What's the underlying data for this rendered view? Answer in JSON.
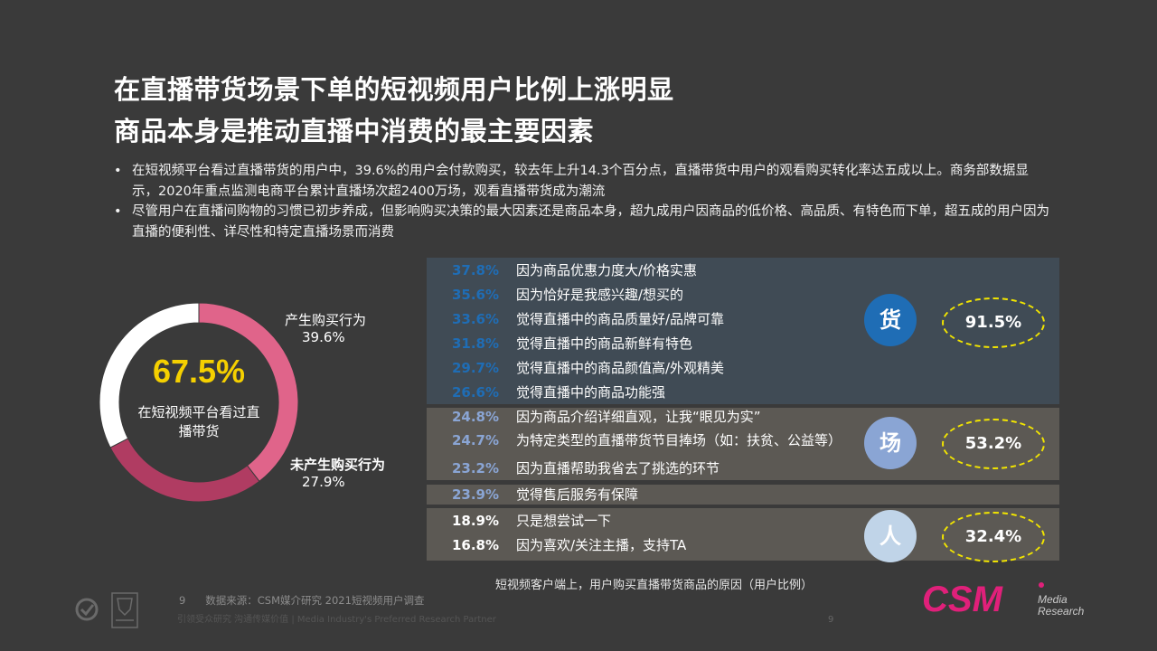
{
  "title": {
    "line1": "在直播带货场景下单的短视频用户比例上涨明显",
    "line2": "商品本身是推动直播中消费的最主要因素"
  },
  "bullets": [
    "在短视频平台看过直播带货的用户中，39.6%的用户会付款购买，较去年上升14.3个百分点，直播带货中用户的观看购买转化率达五成以上。商务部数据显示，2020年重点监测电商平台累计直播场次超2400万场，观看直播带货成为潮流",
    "尽管用户在直播间购物的习惯已初步养成，但影响购买决策的最大因素还是商品本身，超九成用户因商品的低价格、高品质、有特色而下单，超五成的用户因为直播的便利性、详尽性和特定直播场景而消费"
  ],
  "bullet_symbol": "•",
  "chart_data": [
    {
      "type": "pie",
      "categories": [
        "产生购买行为",
        "未产生购买行为"
      ],
      "values": [
        39.6,
        27.9
      ],
      "remainder": 32.5,
      "labels": [
        "39.6%",
        "27.9%"
      ],
      "center_value": "67.5%",
      "center_label_line1": "在短视频平台看过直",
      "center_label_line2": "播带货",
      "colors": [
        "#e0648a",
        "#b03c62",
        "#ffffff"
      ]
    },
    {
      "type": "table",
      "title": "短视频客户端上，用户购买直播带货商品的原因（用户比例）",
      "groups": [
        {
          "key": "货",
          "total": "91.5%",
          "color": "#1f6db5",
          "rows": [
            {
              "value": 37.8,
              "label": "37.8%",
              "text": "因为商品优惠力度大/价格实惠"
            },
            {
              "value": 35.6,
              "label": "35.6%",
              "text": "因为恰好是我感兴趣/想买的"
            },
            {
              "value": 33.6,
              "label": "33.6%",
              "text": "觉得直播中的商品质量好/品牌可靠"
            },
            {
              "value": 31.8,
              "label": "31.8%",
              "text": "觉得直播中的商品新鲜有特色"
            },
            {
              "value": 29.7,
              "label": "29.7%",
              "text": "觉得直播中的商品颜值高/外观精美"
            },
            {
              "value": 26.6,
              "label": "26.6%",
              "text": "觉得直播中的商品功能强"
            }
          ]
        },
        {
          "key": "场",
          "total": "53.2%",
          "color": "#8aa5d4",
          "rows": [
            {
              "value": 24.8,
              "label": "24.8%",
              "text": "因为商品介绍详细直观，让我“眼见为实”"
            },
            {
              "value": 24.7,
              "label": "24.7%",
              "text": "为特定类型的直播带货节目捧场（如：扶贫、公益等）"
            },
            {
              "value": 23.2,
              "label": "23.2%",
              "text": "因为直播帮助我省去了挑选的环节"
            }
          ]
        },
        {
          "key": "",
          "total": "",
          "color": "#8aa5d4",
          "rows": [
            {
              "value": 23.9,
              "label": "23.9%",
              "text": "觉得售后服务有保障"
            }
          ]
        },
        {
          "key": "人",
          "total": "32.4%",
          "color": "#c0d4e8",
          "rows": [
            {
              "value": 18.9,
              "label": "18.9%",
              "text": "只是想尝试一下"
            },
            {
              "value": 16.8,
              "label": "16.8%",
              "text": "因为喜欢/关注主播，支持TA"
            }
          ]
        }
      ]
    }
  ],
  "colors": {
    "goods_pct": "#1f6db5",
    "scene_pct": "#8aa5d4",
    "people_pct": "#ffffff",
    "center_value": "#f5d000",
    "oval_border": "#f2e500",
    "logo": "#e0207a"
  },
  "footer": {
    "page_small": "9",
    "source": "数据来源：CSM媒介研究 2021短视频用户调查",
    "slogan": "引领受众研究  沟通传媒价值 | Media Industry's Preferred Research Partner",
    "page_number": "9"
  },
  "logo": {
    "main": "CSM",
    "line1": "Media",
    "line2": "Research"
  },
  "icons": [
    "check-badge-icon",
    "certification-seal-icon"
  ]
}
